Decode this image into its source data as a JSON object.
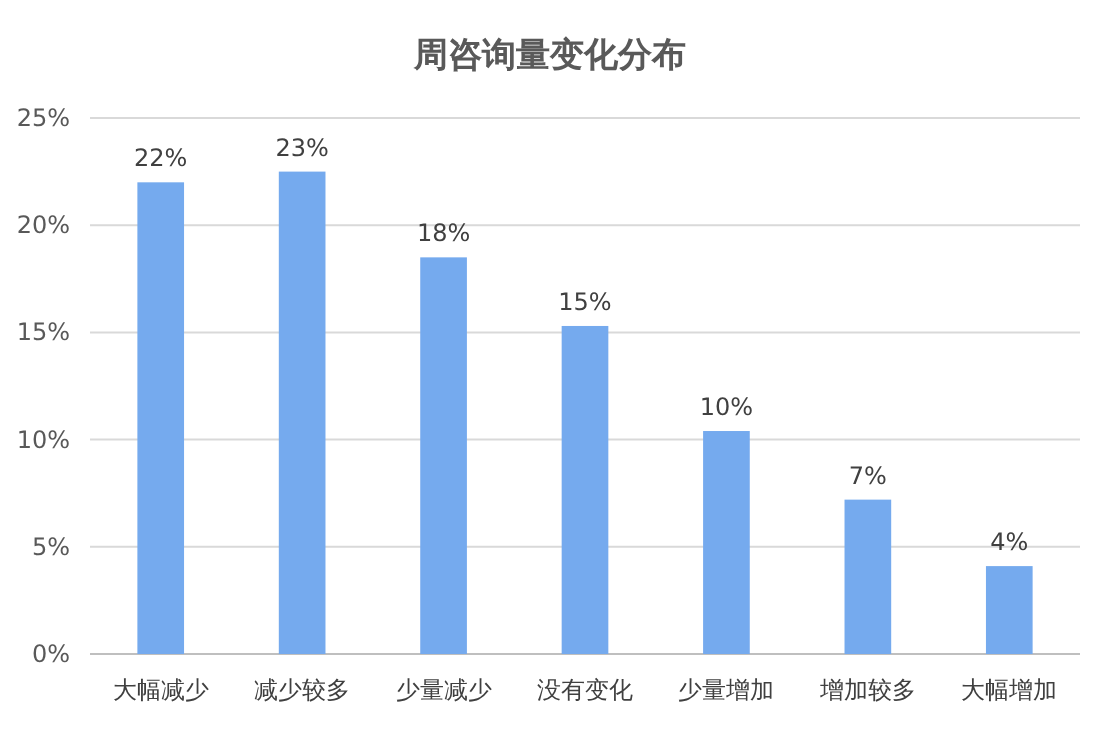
{
  "chart_data": {
    "type": "bar",
    "title": "周咨询量变化分布",
    "categories": [
      "大幅减少",
      "减少较多",
      "少量减少",
      "没有变化",
      "少量增加",
      "增加较多",
      "大幅增加"
    ],
    "values": [
      22.0,
      22.5,
      18.5,
      15.3,
      10.4,
      7.2,
      4.1
    ],
    "value_labels": [
      "22%",
      "23%",
      "18%",
      "15%",
      "10%",
      "7%",
      "4%"
    ],
    "color": "#75aaee",
    "ylim": [
      0,
      25
    ],
    "yticks": [
      {
        "value": 0,
        "label": "0%"
      },
      {
        "value": 5,
        "label": "5%"
      },
      {
        "value": 10,
        "label": "10%"
      },
      {
        "value": 15,
        "label": "15%"
      },
      {
        "value": 20,
        "label": "20%"
      },
      {
        "value": 25,
        "label": "25%"
      }
    ],
    "grid": "y"
  }
}
